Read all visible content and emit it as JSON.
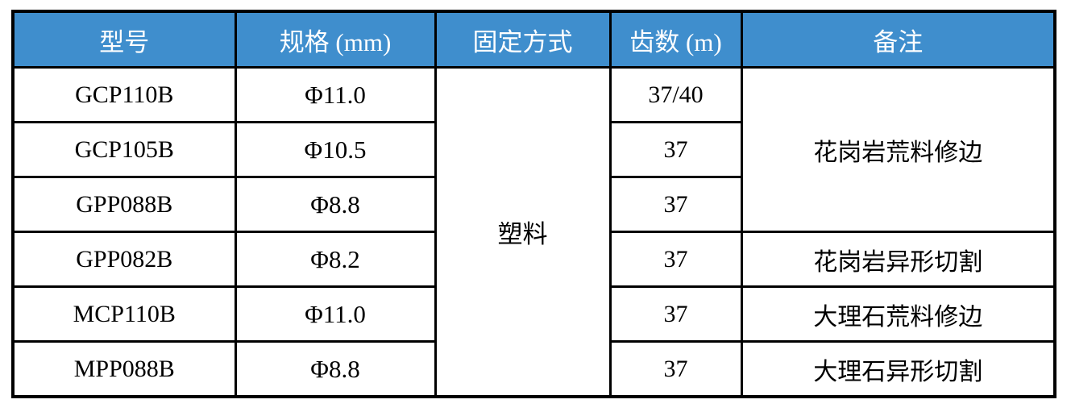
{
  "colors": {
    "header_bg": "#3F8ECD",
    "header_text": "#FFFFFF",
    "border": "#000000",
    "body_text": "#000000",
    "page_bg": "#FFFFFF"
  },
  "table": {
    "columns": [
      {
        "label": "型号"
      },
      {
        "label": "规格 (mm)"
      },
      {
        "label": "固定方式"
      },
      {
        "label": "齿数 (m)"
      },
      {
        "label": "备注"
      }
    ],
    "fixing_value": "塑料",
    "rows": [
      {
        "model": "GCP110B",
        "spec": "Φ11.0",
        "teeth": "37/40"
      },
      {
        "model": "GCP105B",
        "spec": "Φ10.5",
        "teeth": "37"
      },
      {
        "model": "GPP088B",
        "spec": "Φ8.8",
        "teeth": "37"
      },
      {
        "model": "GPP082B",
        "spec": "Φ8.2",
        "teeth": "37"
      },
      {
        "model": "MCP110B",
        "spec": "Φ11.0",
        "teeth": "37"
      },
      {
        "model": "MPP088B",
        "spec": "Φ8.8",
        "teeth": "37"
      }
    ],
    "remarks": [
      {
        "text": "花岗岩荒料修边"
      },
      {
        "text": "花岗岩异形切割"
      },
      {
        "text": "大理石荒料修边"
      },
      {
        "text": "大理石异形切割"
      }
    ]
  }
}
